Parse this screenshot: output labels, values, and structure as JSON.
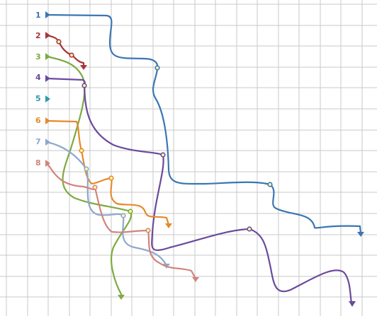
{
  "colors": {
    "background": "#ffffff",
    "grid": "#c8c8c8",
    "waypoint_fill": "#fff8a0"
  },
  "paths": [
    {
      "label": "1",
      "color": "#3b76b2",
      "end_marker": "arrow-down-icon"
    },
    {
      "label": "2",
      "color": "#a8343c",
      "end_marker": "arrow-down-icon"
    },
    {
      "label": "3",
      "color": "#7dab40",
      "end_marker": "arrow-down-icon"
    },
    {
      "label": "4",
      "color": "#6a4a9c",
      "end_marker": "arrow-down-icon"
    },
    {
      "label": "5",
      "color": "#2c9ba8",
      "end_marker": "none"
    },
    {
      "label": "6",
      "color": "#e48a2e",
      "end_marker": "arrow-down-icon"
    },
    {
      "label": "7",
      "color": "#8ea8cf",
      "end_marker": "arrow-down-icon"
    },
    {
      "label": "8",
      "color": "#d1847c",
      "end_marker": "arrow-down-icon"
    }
  ]
}
